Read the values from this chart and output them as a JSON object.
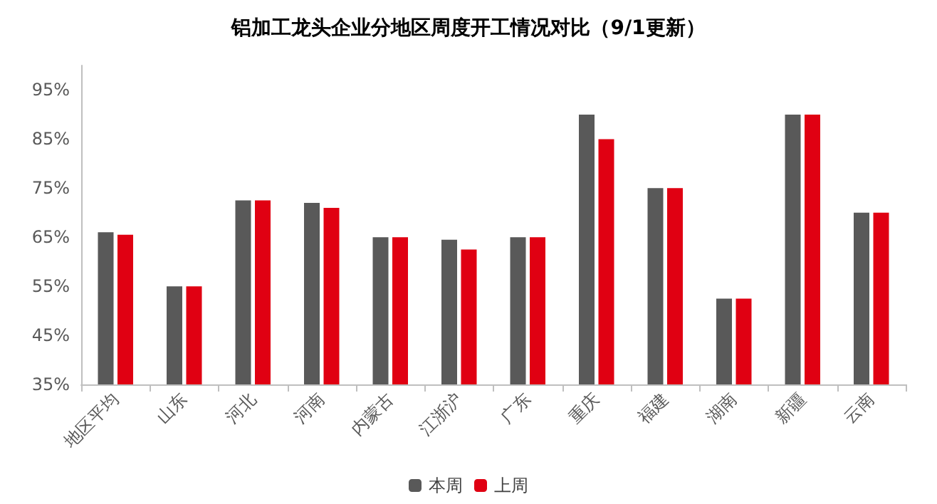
{
  "chart_data": {
    "type": "bar",
    "title": "铝加工龙头企业分地区周度开工情况对比（9/1更新）",
    "categories": [
      "地区平均",
      "山东",
      "河北",
      "河南",
      "内蒙古",
      "江浙沪",
      "广东",
      "重庆",
      "福建",
      "湖南",
      "新疆",
      "云南"
    ],
    "series": [
      {
        "name": "本周",
        "color": "#595959",
        "values": [
          66,
          55,
          72.5,
          72,
          65,
          64.5,
          65,
          90,
          75,
          52.5,
          90,
          70
        ]
      },
      {
        "name": "上周",
        "color": "#e00012",
        "values": [
          65.5,
          55,
          72.5,
          71,
          65,
          62.5,
          65,
          85,
          75,
          52.5,
          90,
          70
        ]
      }
    ],
    "ylim": [
      35,
      100
    ],
    "yticks": [
      {
        "value": 35,
        "label": "35%"
      },
      {
        "value": 45,
        "label": "45%"
      },
      {
        "value": 55,
        "label": "55%"
      },
      {
        "value": 65,
        "label": "65%"
      },
      {
        "value": 75,
        "label": "75%"
      },
      {
        "value": 85,
        "label": "85%"
      },
      {
        "value": 95,
        "label": "95%"
      }
    ],
    "grid": false,
    "legend": "bottom"
  }
}
